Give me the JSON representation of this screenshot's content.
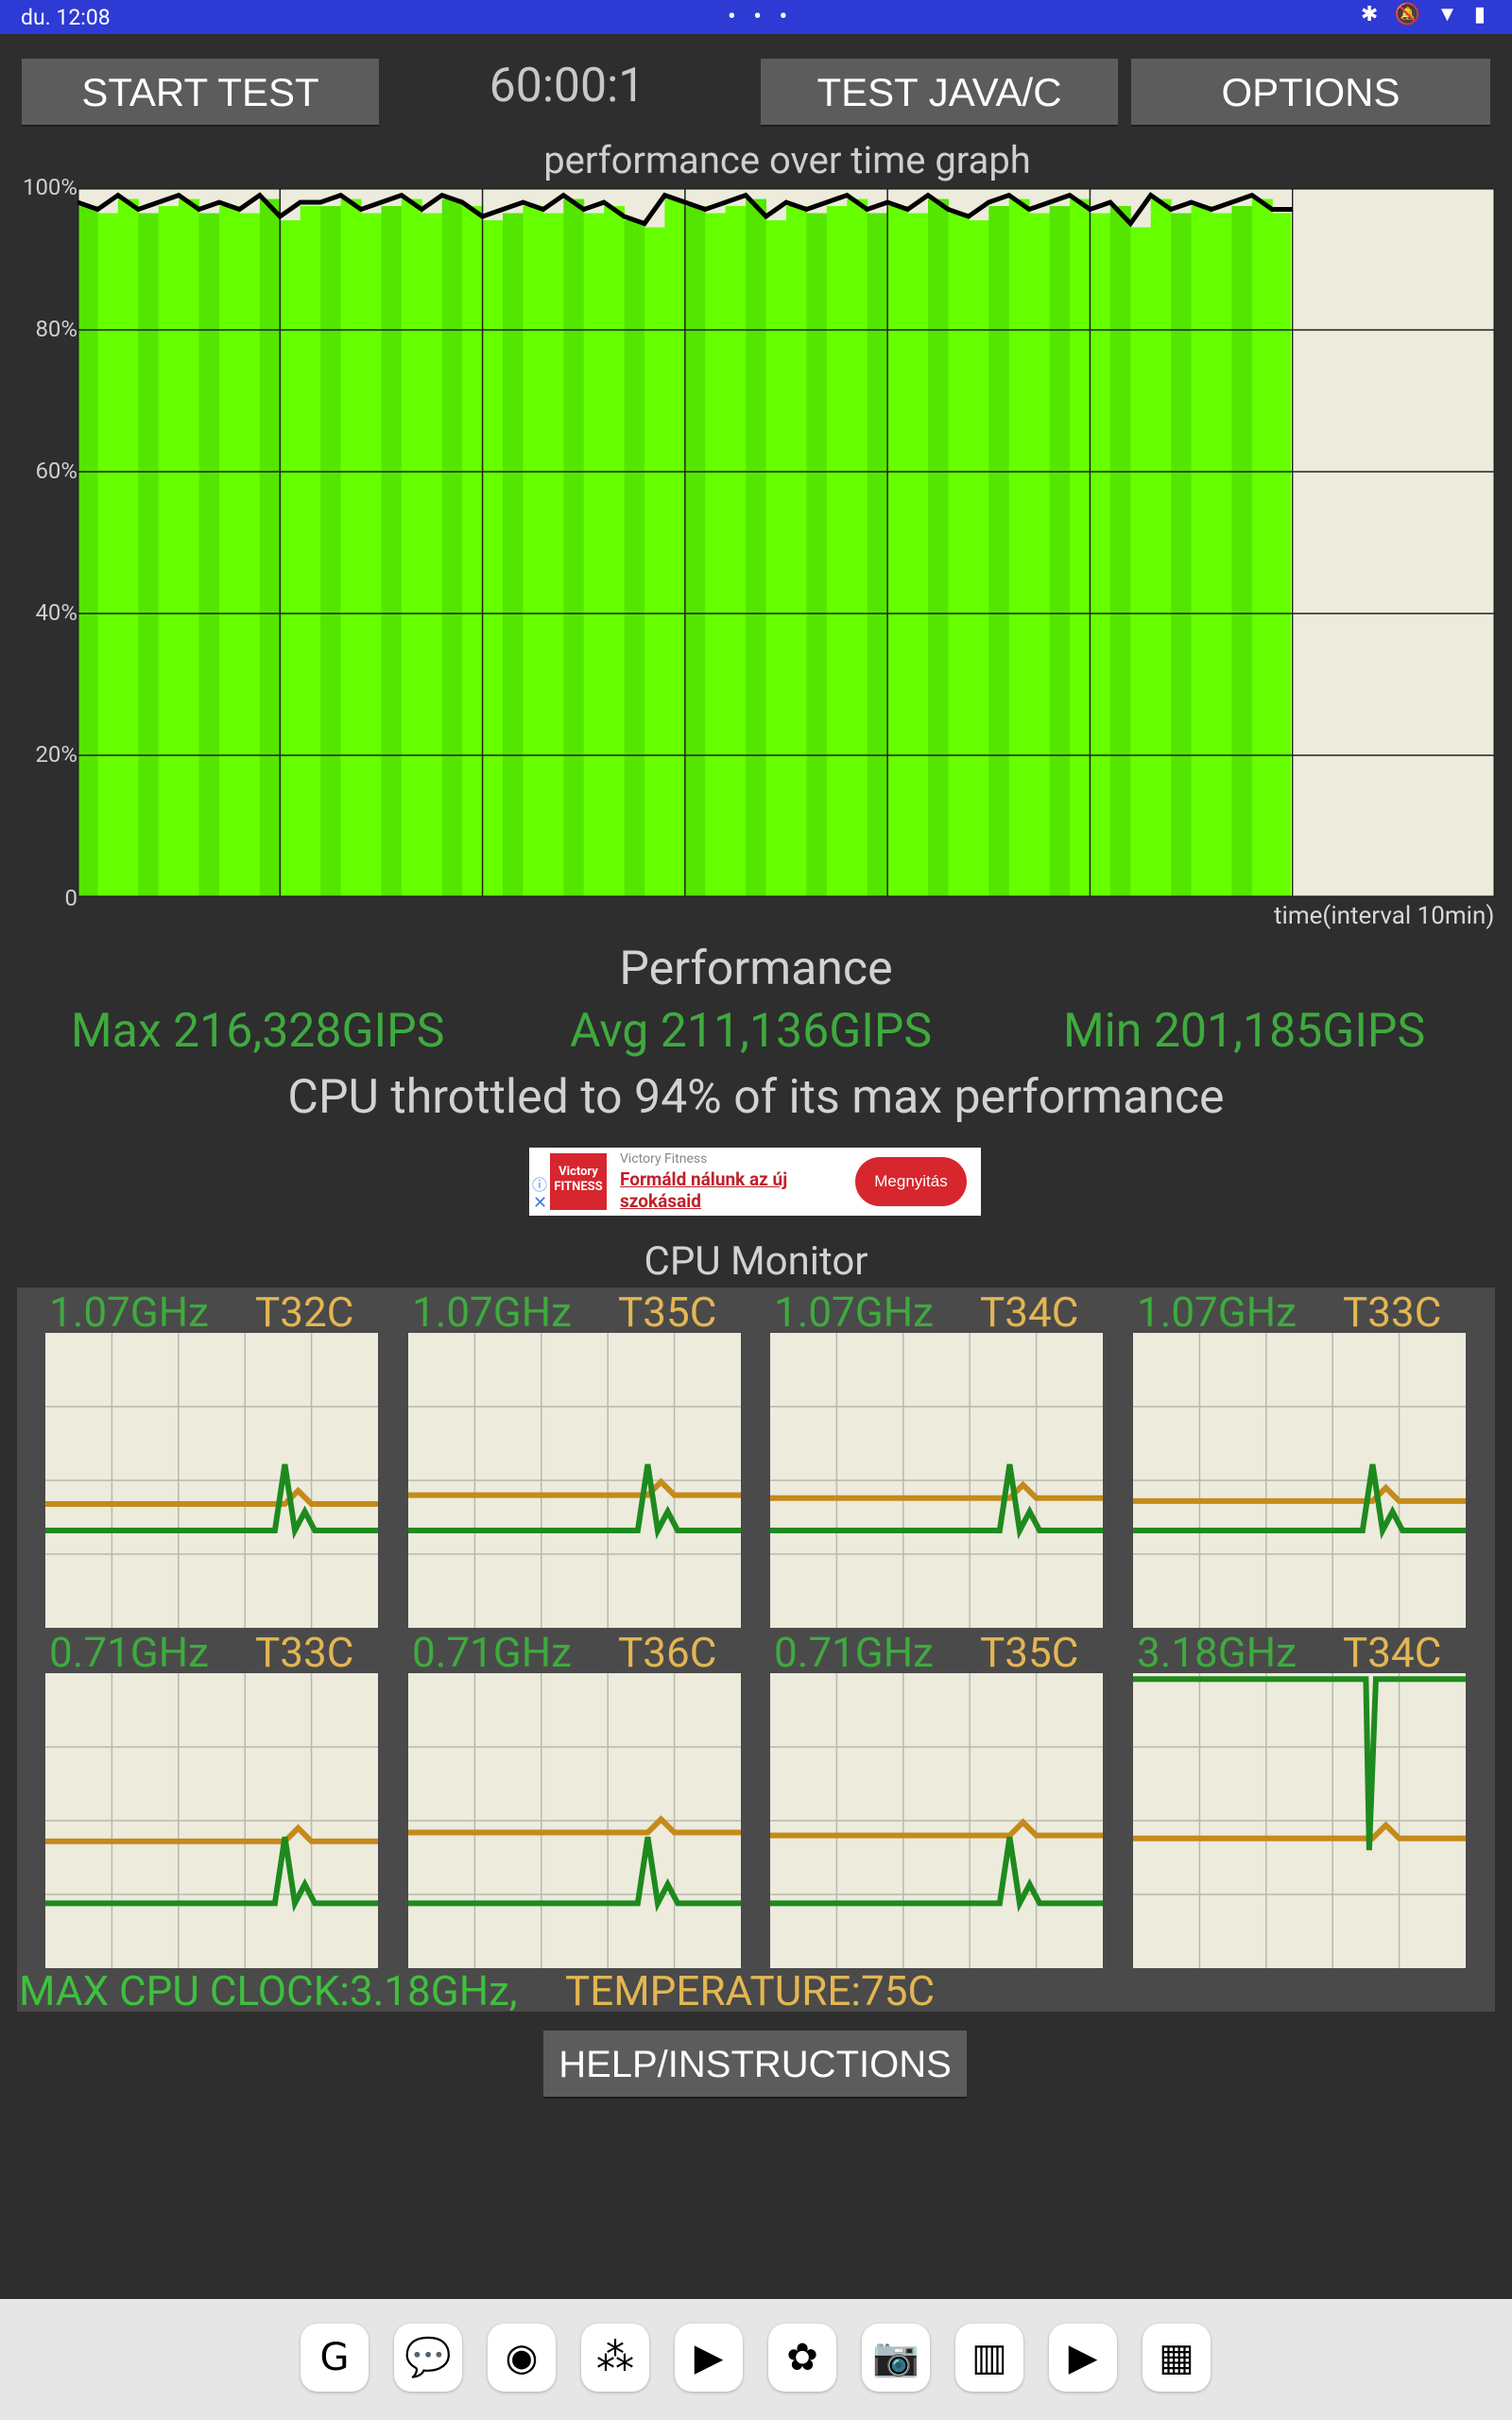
{
  "status_bar": {
    "time": "du. 12:08",
    "dots": "• • •",
    "icons": "✱ 🔕 ▼ ▮"
  },
  "toolbar": {
    "start_label": "START TEST",
    "timer": "60:00:1",
    "test_label": "TEST JAVA/C",
    "options_label": "OPTIONS"
  },
  "graph": {
    "title": "performance over time graph",
    "y_ticks": [
      "100%",
      "80%",
      "60%",
      "40%",
      "20%",
      "0"
    ],
    "x_label": "time(interval 10min)",
    "colors": {
      "fill": "#66ff00",
      "fill_dark": "#54e600",
      "background": "#ecebdc",
      "line": "#000000"
    }
  },
  "chart_data": {
    "type": "area",
    "title": "performance over time graph",
    "xlabel": "time(interval 10min)",
    "ylabel": "",
    "ylim": [
      0,
      100
    ],
    "y_ticks": [
      0,
      20,
      40,
      60,
      80,
      100
    ],
    "x_range_minutes": [
      0,
      70
    ],
    "filled_until_minutes": 60,
    "series": [
      {
        "x_minutes": [
          0,
          1,
          2,
          3,
          4,
          5,
          6,
          7,
          8,
          9,
          10,
          11,
          12,
          13,
          14,
          15,
          16,
          17,
          18,
          19,
          20,
          21,
          22,
          23,
          24,
          25,
          26,
          27,
          28,
          29,
          30,
          31,
          32,
          33,
          34,
          35,
          36,
          37,
          38,
          39,
          40,
          41,
          42,
          43,
          44,
          45,
          46,
          47,
          48,
          49,
          50,
          51,
          52,
          53,
          54,
          55,
          56,
          57,
          58,
          59,
          60
        ],
        "values": [
          98,
          97,
          99,
          97,
          98,
          99,
          97,
          98,
          97,
          99,
          96,
          98,
          98,
          99,
          97,
          98,
          99,
          97,
          99,
          98,
          96,
          97,
          98,
          97,
          99,
          97,
          98,
          96,
          95,
          99,
          98,
          97,
          98,
          99,
          96,
          98,
          97,
          98,
          99,
          97,
          98,
          97,
          99,
          97,
          96,
          98,
          99,
          97,
          98,
          99,
          97,
          98,
          95,
          99,
          97,
          98,
          97,
          98,
          99,
          97,
          97
        ]
      }
    ]
  },
  "performance": {
    "title": "Performance",
    "max": "Max 216,328GIPS",
    "avg": "Avg 211,136GIPS",
    "min": "Min 201,185GIPS",
    "throttle": "CPU throttled to 94% of its max performance"
  },
  "ad": {
    "brand": "Victory Fitness",
    "headline": "Formáld nálunk az új szokásaid",
    "cta": "Megnyitás",
    "logo_text": "Victory FITNESS",
    "colors": {
      "accent": "#d7262e"
    }
  },
  "cpu_monitor": {
    "title": "CPU Monitor",
    "cores": [
      {
        "freq": "1.07GHz",
        "temp": "T32C",
        "clock_level": 0.33,
        "temp_level": 0.42
      },
      {
        "freq": "1.07GHz",
        "temp": "T35C",
        "clock_level": 0.33,
        "temp_level": 0.45
      },
      {
        "freq": "1.07GHz",
        "temp": "T34C",
        "clock_level": 0.33,
        "temp_level": 0.44
      },
      {
        "freq": "1.07GHz",
        "temp": "T33C",
        "clock_level": 0.33,
        "temp_level": 0.43
      },
      {
        "freq": "0.71GHz",
        "temp": "T33C",
        "clock_level": 0.22,
        "temp_level": 0.43
      },
      {
        "freq": "0.71GHz",
        "temp": "T36C",
        "clock_level": 0.22,
        "temp_level": 0.46
      },
      {
        "freq": "0.71GHz",
        "temp": "T35C",
        "clock_level": 0.22,
        "temp_level": 0.45
      },
      {
        "freq": "3.18GHz",
        "temp": "T34C",
        "clock_level": 0.98,
        "temp_level": 0.44
      }
    ],
    "max_clock": "MAX CPU CLOCK:3.18GHz,",
    "max_temp": "TEMPERATURE:75C",
    "colors": {
      "clock_line": "#1e8a1e",
      "temp_line": "#c58a1a"
    }
  },
  "help_label": "HELP/INSTRUCTIONS",
  "dock": {
    "apps": [
      {
        "icon": "google-icon",
        "glyph": "G"
      },
      {
        "icon": "messages-icon",
        "glyph": "💬"
      },
      {
        "icon": "chrome-icon",
        "glyph": "◉"
      },
      {
        "icon": "assistant-icon",
        "glyph": "⁂"
      },
      {
        "icon": "play-store-icon",
        "glyph": "▶"
      },
      {
        "icon": "photos-icon",
        "glyph": "✿"
      },
      {
        "icon": "camera-icon",
        "glyph": "📷"
      },
      {
        "icon": "cpu-throttling-app-icon",
        "glyph": "▥"
      },
      {
        "icon": "youtube-icon",
        "glyph": "▶"
      },
      {
        "icon": "app-drawer-icon",
        "glyph": "▦"
      }
    ]
  }
}
